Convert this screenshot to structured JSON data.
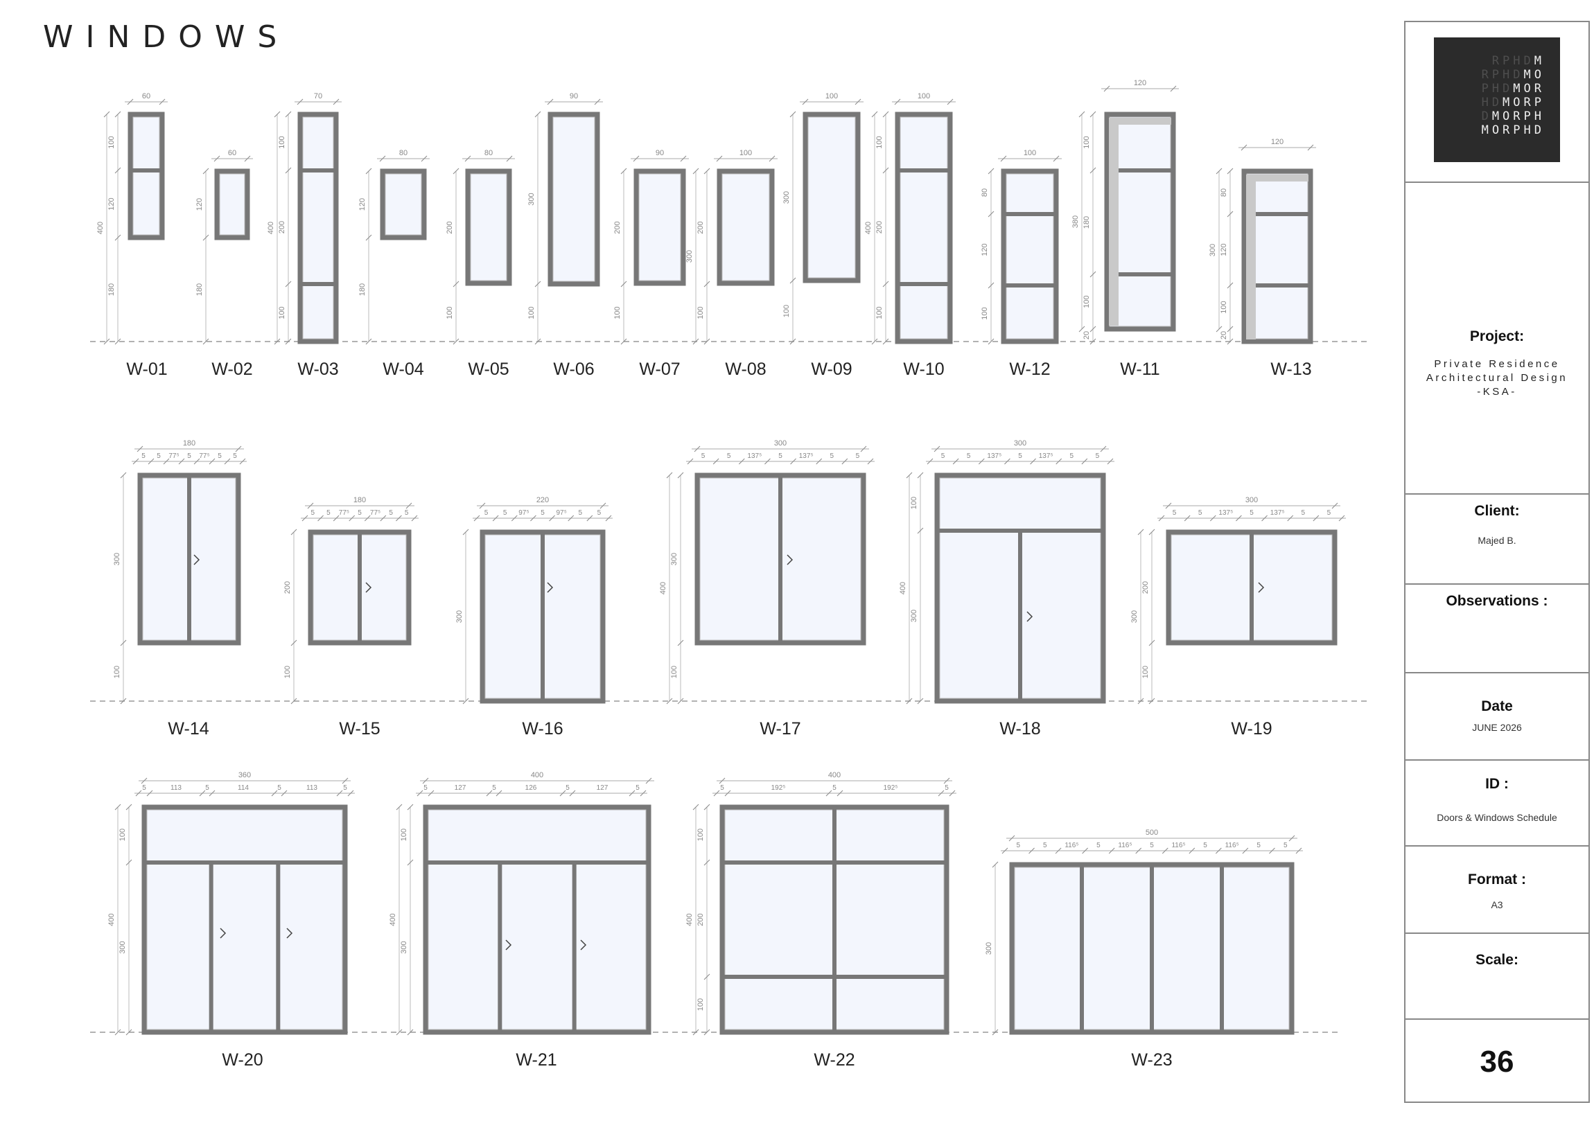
{
  "page_title": "WINDOWS",
  "logo": {
    "rows": [
      {
        "dim": "RPHD",
        "bright": "M"
      },
      {
        "dim": "RPHD",
        "bright": "MO"
      },
      {
        "dim": "PHD",
        "bright": "MOR"
      },
      {
        "dim": "HD",
        "bright": "MORP"
      },
      {
        "dim": "D",
        "bright": "MORPH"
      },
      {
        "dim": "",
        "bright": "MORPHD"
      }
    ]
  },
  "title_block": {
    "project_label": "Project:",
    "project_lines": [
      "Private Residence",
      "Architectural Design",
      "-KSA-"
    ],
    "client_label": "Client:",
    "client_value": "Majed B.",
    "observations_label": "Observations :",
    "date_label": "Date",
    "date_value": "JUNE 2026",
    "id_label": "ID :",
    "id_value": "Doors & Windows Schedule",
    "format_label": "Format :",
    "format_value": "A3",
    "scale_label": "Scale:",
    "page_number": "36"
  },
  "windows": [
    {
      "label": "W-01",
      "top": [
        "60"
      ],
      "left": [
        "100",
        "120",
        "180"
      ],
      "total": "400",
      "hatch": false
    },
    {
      "label": "W-02",
      "top": [
        "60"
      ],
      "left": [
        "120",
        "180"
      ],
      "total": "",
      "hatch": false
    },
    {
      "label": "W-03",
      "top": [
        "70"
      ],
      "left": [
        "100",
        "200",
        "100"
      ],
      "total": "400",
      "hatch": false
    },
    {
      "label": "W-04",
      "top": [
        "80"
      ],
      "left": [
        "120",
        "180"
      ],
      "total": "",
      "hatch": false
    },
    {
      "label": "W-05",
      "top": [
        "80"
      ],
      "left": [
        "200",
        "100"
      ],
      "total": "",
      "hatch": false
    },
    {
      "label": "W-06",
      "top": [
        "90"
      ],
      "left": [
        "300",
        "100"
      ],
      "total": "",
      "hatch": false
    },
    {
      "label": "W-07",
      "top": [
        "90"
      ],
      "left": [
        "200",
        "100"
      ],
      "total": "",
      "hatch": false
    },
    {
      "label": "W-08",
      "top": [
        "100"
      ],
      "left": [
        "200",
        "100"
      ],
      "total": "300",
      "hatch": false
    },
    {
      "label": "W-09",
      "top": [
        "100"
      ],
      "left": [
        "300",
        "100"
      ],
      "total": "",
      "hatch": false
    },
    {
      "label": "W-10",
      "top": [
        "100"
      ],
      "left": [
        "100",
        "200",
        "100"
      ],
      "total": "400",
      "hatch": false
    },
    {
      "label": "W-12",
      "top": [
        "100"
      ],
      "left": [
        "80",
        "120",
        "100"
      ],
      "total": "",
      "hatch": false
    },
    {
      "label": "W-11",
      "top": [
        "120"
      ],
      "left": [
        "100",
        "180",
        "100",
        "20"
      ],
      "total": "380",
      "hatch": true
    },
    {
      "label": "W-13",
      "top": [
        "120"
      ],
      "left": [
        "80",
        "120",
        "100",
        "20"
      ],
      "total": "300",
      "hatch": true
    },
    {
      "label": "W-14",
      "top": [
        "180"
      ],
      "sub": [
        "5",
        "5",
        "77⁵",
        "5",
        "77⁵",
        "5",
        "5"
      ],
      "left": [
        "300",
        "100"
      ],
      "total": ""
    },
    {
      "label": "W-15",
      "top": [
        "180"
      ],
      "sub": [
        "5",
        "5",
        "77⁵",
        "5",
        "77⁵",
        "5",
        "5"
      ],
      "left": [
        "200",
        "100"
      ],
      "total": ""
    },
    {
      "label": "W-16",
      "top": [
        "220"
      ],
      "sub": [
        "5",
        "5",
        "97⁵",
        "5",
        "97⁵",
        "5",
        "5"
      ],
      "left": [
        "300"
      ],
      "total": ""
    },
    {
      "label": "W-17",
      "top": [
        "300"
      ],
      "sub": [
        "5",
        "5",
        "137⁵",
        "5",
        "137⁵",
        "5",
        "5"
      ],
      "left": [
        "300",
        "100"
      ],
      "total": "400"
    },
    {
      "label": "W-18",
      "top": [
        "300"
      ],
      "sub": [
        "5",
        "5",
        "137⁵",
        "5",
        "137⁵",
        "5",
        "5"
      ],
      "left": [
        "100",
        "300"
      ],
      "total": "400"
    },
    {
      "label": "W-19",
      "top": [
        "300"
      ],
      "sub": [
        "5",
        "5",
        "137⁵",
        "5",
        "137⁵",
        "5",
        "5"
      ],
      "left": [
        "200",
        "100"
      ],
      "total": "300"
    },
    {
      "label": "W-20",
      "top": [
        "360"
      ],
      "sub": [
        "5",
        "113",
        "5",
        "114",
        "5",
        "113",
        "5"
      ],
      "left": [
        "100",
        "300"
      ],
      "total": "400"
    },
    {
      "label": "W-21",
      "top": [
        "400"
      ],
      "sub": [
        "5",
        "127",
        "5",
        "126",
        "5",
        "127",
        "5"
      ],
      "left": [
        "100",
        "300"
      ],
      "total": "400"
    },
    {
      "label": "W-22",
      "top": [
        "400"
      ],
      "sub": [
        "5",
        "192⁵",
        "5",
        "192⁵",
        "5"
      ],
      "left": [
        "100",
        "200",
        "100"
      ],
      "total": "400"
    },
    {
      "label": "W-23",
      "top": [
        "500"
      ],
      "sub": [
        "5",
        "5",
        "116⁵",
        "5",
        "116⁵",
        "5",
        "116⁵",
        "5",
        "116⁵",
        "5",
        "5"
      ],
      "left": [
        "300"
      ],
      "total": ""
    }
  ]
}
